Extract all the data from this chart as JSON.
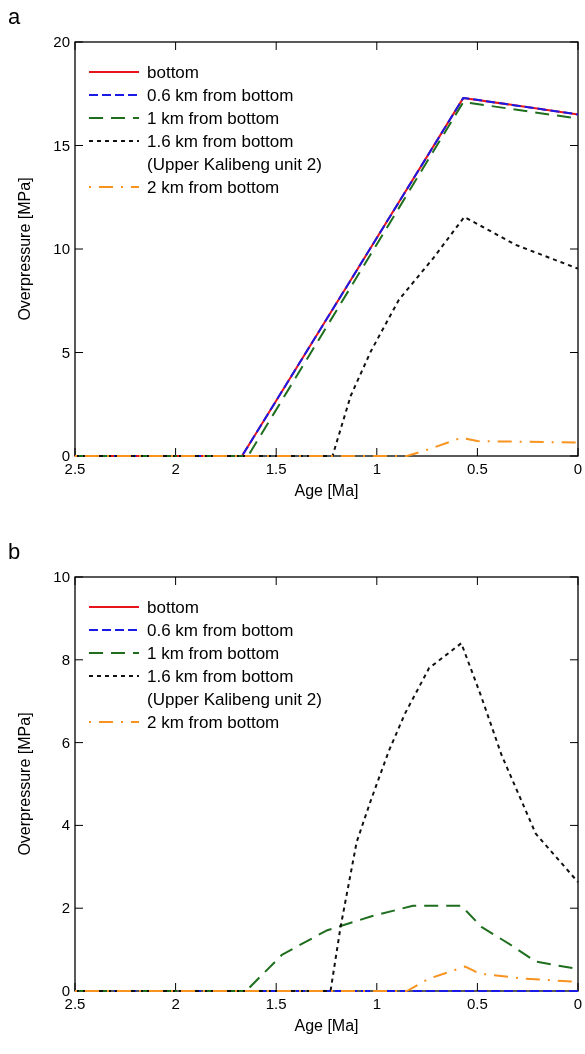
{
  "chart_data": [
    {
      "type": "line",
      "title": "a",
      "xlabel": "Age [Ma]",
      "ylabel": "Overpressure [MPa]",
      "xlim": [
        2.5,
        0
      ],
      "xticks": [
        2.5,
        2,
        1.5,
        1,
        0.5,
        0
      ],
      "ylim": [
        0,
        20
      ],
      "yticks": [
        0,
        5,
        10,
        15,
        20
      ],
      "grid": false,
      "legend": "top left",
      "series": [
        {
          "name": "bottom",
          "color": "#e8141c",
          "line_style": "solid",
          "x": [
            2.5,
            1.67,
            0.57,
            0
          ],
          "values": [
            0,
            0,
            17.3,
            16.5
          ]
        },
        {
          "name": "0.6 km from bottom",
          "color": "#1a1ae6",
          "line_style": "dashed",
          "x": [
            2.5,
            1.67,
            0.57,
            0
          ],
          "values": [
            0,
            0,
            17.3,
            16.5
          ]
        },
        {
          "name": "1 km from bottom",
          "color": "#1e6e1e",
          "line_style": "dashed",
          "x": [
            2.5,
            1.64,
            0.57,
            0
          ],
          "values": [
            0,
            0,
            17.1,
            16.3
          ]
        },
        {
          "name": "1.6 km from bottom\n(Upper Kalibeng unit 2)",
          "color": "#111111",
          "line_style": "dotted",
          "x": [
            2.5,
            1.22,
            1.13,
            1.03,
            0.89,
            0.72,
            0.565,
            0.31,
            0
          ],
          "values": [
            0,
            0,
            2.9,
            5.05,
            7.55,
            9.55,
            11.55,
            10.2,
            9.05
          ]
        },
        {
          "name": "2 km from bottom",
          "color": "#f7931e",
          "line_style": "dashed",
          "x": [
            2.5,
            0.85,
            0.74,
            0.58,
            0.5,
            0
          ],
          "values": [
            0,
            0,
            0.33,
            0.88,
            0.72,
            0.65
          ]
        }
      ]
    },
    {
      "type": "line",
      "title": "b",
      "xlabel": "Age [Ma]",
      "ylabel": "Overpressure [MPa]",
      "xlim": [
        2.5,
        0
      ],
      "xticks": [
        2.5,
        2,
        1.5,
        1,
        0.5,
        0
      ],
      "ylim": [
        0,
        10
      ],
      "yticks": [
        0,
        2,
        4,
        6,
        8,
        10
      ],
      "grid": false,
      "legend": "top left",
      "series": [
        {
          "name": "bottom",
          "color": "#e8141c",
          "line_style": "solid"
        },
        {
          "name": "0.6 km from bottom",
          "color": "#1a1ae6",
          "line_style": "dashed",
          "x": [
            2.5,
            0
          ],
          "values": [
            0,
            0
          ]
        },
        {
          "name": "1 km from bottom",
          "color": "#1e6e1e",
          "line_style": "dashed",
          "x": [
            2.5,
            1.65,
            1.47,
            1.25,
            1.03,
            0.82,
            0.58,
            0.48,
            0.34,
            0.21,
            0
          ],
          "values": [
            0,
            0,
            0.88,
            1.46,
            1.8,
            2.06,
            2.06,
            1.55,
            1.13,
            0.71,
            0.53
          ]
        },
        {
          "name": "1.6 km from bottom\n(Upper Kalibeng unit 2)",
          "color": "#111111",
          "line_style": "dotted",
          "x": [
            2.5,
            1.23,
            1.18,
            1.1,
            1.03,
            0.94,
            0.86,
            0.74,
            0.58,
            0.48,
            0.38,
            0.21,
            0
          ],
          "values": [
            0,
            0,
            1.55,
            3.6,
            4.6,
            5.8,
            6.7,
            7.8,
            8.4,
            7.1,
            5.7,
            3.8,
            2.63
          ]
        },
        {
          "name": "2 km from bottom",
          "color": "#f7931e",
          "line_style": "dashed",
          "x": [
            2.5,
            0.85,
            0.74,
            0.56,
            0.49,
            0.27,
            0
          ],
          "values": [
            0,
            0,
            0.3,
            0.59,
            0.42,
            0.3,
            0.22
          ]
        }
      ]
    }
  ]
}
